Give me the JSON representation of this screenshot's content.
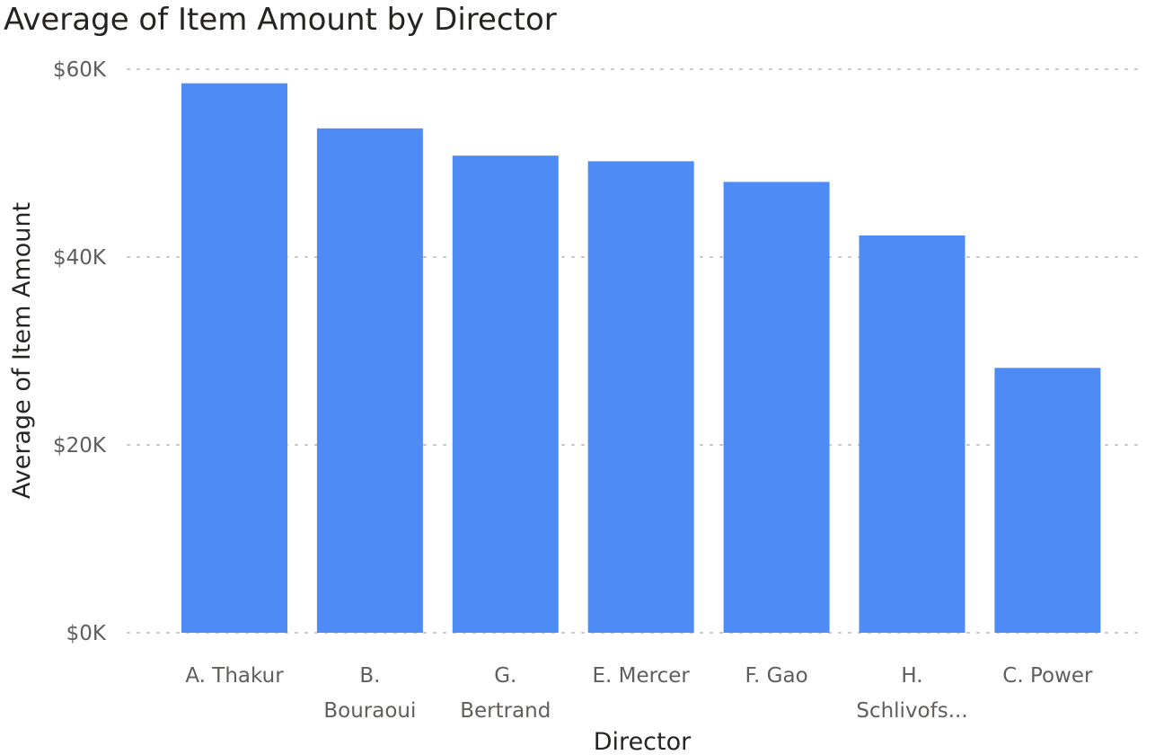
{
  "chart_data": {
    "type": "bar",
    "title": "Average of Item Amount by Director",
    "xlabel": "Director",
    "ylabel": "Average of Item Amount",
    "categories": [
      [
        "A. Thakur"
      ],
      [
        "B.",
        "Bouraoui"
      ],
      [
        "G.",
        "Bertrand"
      ],
      [
        "E. Mercer"
      ],
      [
        "F. Gao"
      ],
      [
        "H.",
        "Schlivofs..."
      ],
      [
        "C. Power"
      ]
    ],
    "values": [
      58500,
      53700,
      50800,
      50200,
      48000,
      42300,
      28200
    ],
    "ylim": [
      0,
      60000
    ],
    "yticks": [
      0,
      20000,
      40000,
      60000
    ],
    "ytick_labels": [
      "$0K",
      "$20K",
      "$40K",
      "$60K"
    ],
    "grid": true,
    "bar_color": "#4e8bf5",
    "legend": "none"
  }
}
